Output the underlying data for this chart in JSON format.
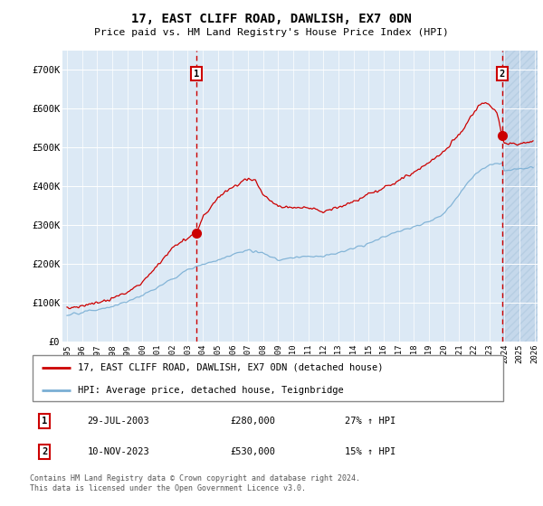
{
  "title": "17, EAST CLIFF ROAD, DAWLISH, EX7 0DN",
  "subtitle": "Price paid vs. HM Land Registry's House Price Index (HPI)",
  "ylim": [
    0,
    750000
  ],
  "yticks": [
    0,
    100000,
    200000,
    300000,
    400000,
    500000,
    600000,
    700000
  ],
  "ytick_labels": [
    "£0",
    "£100K",
    "£200K",
    "£300K",
    "£400K",
    "£500K",
    "£600K",
    "£700K"
  ],
  "x_start_year": 1995,
  "x_end_year": 2026,
  "sale1_year": 2003.57,
  "sale1_price": 280000,
  "sale1_label": "1",
  "sale1_date": "29-JUL-2003",
  "sale1_hpi": "27% ↑ HPI",
  "sale2_year": 2023.86,
  "sale2_price": 530000,
  "sale2_label": "2",
  "sale2_date": "10-NOV-2023",
  "sale2_hpi": "15% ↑ HPI",
  "line_red": "#cc0000",
  "line_blue": "#7aafd4",
  "bg_plot": "#dce9f5",
  "bg_hatch": "#c5d8eb",
  "grid_color": "#ffffff",
  "legend_line1": "17, EAST CLIFF ROAD, DAWLISH, EX7 0DN (detached house)",
  "legend_line2": "HPI: Average price, detached house, Teignbridge",
  "footer": "Contains HM Land Registry data © Crown copyright and database right 2024.\nThis data is licensed under the Open Government Licence v3.0.",
  "hpi_anchors_x": [
    1995,
    1996,
    1997,
    1998,
    1999,
    2000,
    2001,
    2002,
    2003,
    2004,
    2005,
    2006,
    2007,
    2008,
    2009,
    2010,
    2011,
    2012,
    2013,
    2014,
    2015,
    2016,
    2017,
    2018,
    2019,
    2020,
    2021,
    2022,
    2023,
    2023.86,
    2024,
    2025,
    2025.9
  ],
  "hpi_anchors_y": [
    68000,
    75000,
    82000,
    90000,
    103000,
    120000,
    140000,
    162000,
    185000,
    200000,
    210000,
    225000,
    235000,
    228000,
    210000,
    215000,
    220000,
    220000,
    228000,
    240000,
    255000,
    270000,
    285000,
    295000,
    310000,
    330000,
    380000,
    430000,
    455000,
    460000,
    440000,
    445000,
    450000
  ],
  "red_anchors_x": [
    1995,
    1996,
    1997,
    1998,
    1999,
    2000,
    2001,
    2002,
    2003,
    2003.57,
    2004,
    2005,
    2006,
    2007,
    2007.5,
    2008,
    2009,
    2010,
    2011,
    2012,
    2013,
    2014,
    2015,
    2016,
    2017,
    2018,
    2019,
    2020,
    2021,
    2022,
    2022.5,
    2023,
    2023.5,
    2023.86,
    2024,
    2025,
    2025.9
  ],
  "red_anchors_y": [
    85000,
    92000,
    100000,
    110000,
    128000,
    152000,
    195000,
    240000,
    268000,
    280000,
    320000,
    370000,
    400000,
    420000,
    415000,
    380000,
    350000,
    345000,
    345000,
    335000,
    345000,
    360000,
    380000,
    395000,
    415000,
    435000,
    460000,
    490000,
    535000,
    590000,
    615000,
    610000,
    590000,
    530000,
    510000,
    510000,
    515000
  ]
}
